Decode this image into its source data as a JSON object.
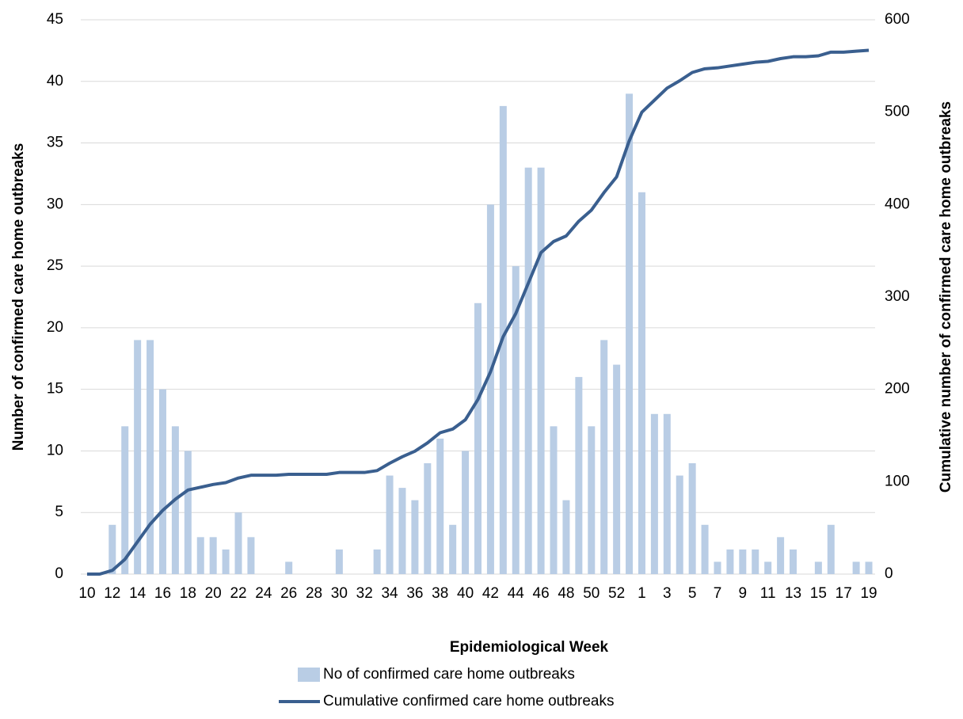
{
  "chart_data": {
    "type": "bar-line",
    "x_label": "Epidemiological Week",
    "y_label": "Number of confirmed care home outbreaks",
    "y2_label": "Cumulative number of confirmed care home outbreaks",
    "categories": [
      "10",
      null,
      "12",
      null,
      "14",
      null,
      "16",
      null,
      "18",
      null,
      "20",
      null,
      "22",
      null,
      "24",
      null,
      "26",
      null,
      "28",
      null,
      "30",
      null,
      "32",
      null,
      "34",
      null,
      "36",
      null,
      "38",
      null,
      "40",
      null,
      "42",
      null,
      "44",
      null,
      "46",
      null,
      "48",
      null,
      "50",
      null,
      "52",
      null,
      "1",
      null,
      "3",
      null,
      "5",
      null,
      "7",
      null,
      "9",
      null,
      "11",
      null,
      "13",
      null,
      "15",
      null,
      "17",
      null,
      "19"
    ],
    "series": [
      {
        "name": "No of confirmed care home outbreaks",
        "type": "bar",
        "color": "#b9cde5",
        "values": [
          0,
          0,
          4,
          12,
          19,
          19,
          15,
          12,
          10,
          3,
          3,
          2,
          5,
          3,
          0,
          0,
          1,
          0,
          0,
          0,
          2,
          0,
          0,
          2,
          8,
          7,
          6,
          9,
          11,
          4,
          10,
          22,
          30,
          38,
          25,
          33,
          33,
          12,
          6,
          16,
          12,
          19,
          17,
          39,
          31,
          13,
          13,
          8,
          9,
          4,
          1,
          2,
          2,
          2,
          1,
          3,
          2,
          0,
          1,
          4,
          0,
          1,
          1
        ]
      },
      {
        "name": "Cumulative confirmed care home outbreaks",
        "type": "line",
        "axis": "y2",
        "color": "#3a5f8f",
        "values": [
          0,
          0,
          4,
          16,
          35,
          54,
          69,
          81,
          91,
          94,
          97,
          99,
          104,
          107,
          107,
          107,
          108,
          108,
          108,
          108,
          110,
          110,
          110,
          112,
          120,
          127,
          133,
          142,
          153,
          157,
          167,
          189,
          219,
          257,
          282,
          315,
          348,
          360,
          366,
          382,
          394,
          413,
          430,
          469,
          500,
          513,
          526,
          534,
          543,
          547,
          548,
          550,
          552,
          554,
          555,
          558,
          560,
          560,
          561,
          565,
          565,
          566,
          567
        ]
      }
    ],
    "ylim": [
      0,
      45
    ],
    "yticks": [
      0,
      5,
      10,
      15,
      20,
      25,
      30,
      35,
      40,
      45
    ],
    "y2lim": [
      0,
      600
    ],
    "y2ticks": [
      0,
      100,
      200,
      300,
      400,
      500,
      600
    ],
    "grid": true
  }
}
